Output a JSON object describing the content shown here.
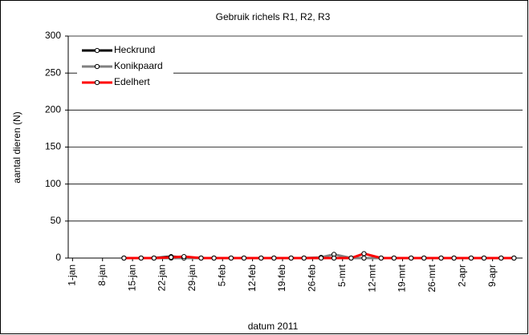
{
  "chart_data": {
    "type": "line",
    "title": "Gebruik richels R1, R2, R3",
    "x_label": "datum 2011",
    "y_label": "aantal dieren (N)",
    "x": [
      13,
      17,
      20,
      24,
      27,
      31,
      34,
      38,
      41,
      45,
      48,
      52,
      55,
      59,
      62,
      66,
      69,
      73,
      76,
      80,
      83,
      87,
      90,
      94,
      97,
      101,
      104
    ],
    "series": [
      {
        "name": "Heckrund",
        "color": "#000000",
        "values": [
          0,
          0,
          0,
          2,
          1,
          0,
          0,
          0,
          0,
          0,
          0,
          0,
          0,
          0,
          0,
          0,
          0,
          0,
          0,
          0,
          0,
          0,
          0,
          0,
          0,
          0,
          0
        ]
      },
      {
        "name": "Konikpaard",
        "color": "#808080",
        "values": [
          0,
          0,
          0,
          0,
          0,
          0,
          0,
          0,
          0,
          0,
          0,
          0,
          0,
          1,
          5,
          0,
          0,
          0,
          0,
          0,
          0,
          0,
          0,
          0,
          0,
          0,
          0
        ]
      },
      {
        "name": "Edelhert",
        "color": "#ff0000",
        "values": [
          0,
          0,
          0,
          1,
          2,
          0,
          0,
          0,
          0,
          0,
          0,
          0,
          0,
          0,
          0,
          0,
          6,
          0,
          0,
          0,
          0,
          0,
          0,
          0,
          0,
          0,
          0
        ]
      }
    ],
    "xlim": [
      0,
      106
    ],
    "xticks": [
      {
        "value": 1,
        "label": "1-jan"
      },
      {
        "value": 8,
        "label": "8-jan"
      },
      {
        "value": 15,
        "label": "15-jan"
      },
      {
        "value": 22,
        "label": "22-jan"
      },
      {
        "value": 29,
        "label": "29-jan"
      },
      {
        "value": 36,
        "label": "5-feb"
      },
      {
        "value": 43,
        "label": "12-feb"
      },
      {
        "value": 50,
        "label": "19-feb"
      },
      {
        "value": 57,
        "label": "26-feb"
      },
      {
        "value": 64,
        "label": "5-mrt"
      },
      {
        "value": 71,
        "label": "12-mrt"
      },
      {
        "value": 78,
        "label": "19-mrt"
      },
      {
        "value": 85,
        "label": "26-mrt"
      },
      {
        "value": 92,
        "label": "2-apr"
      },
      {
        "value": 99,
        "label": "9-apr"
      }
    ],
    "ylim": [
      0,
      300
    ],
    "yticks": [
      0,
      50,
      100,
      150,
      200,
      250,
      300
    ],
    "grid": true,
    "legend": "upper left"
  }
}
